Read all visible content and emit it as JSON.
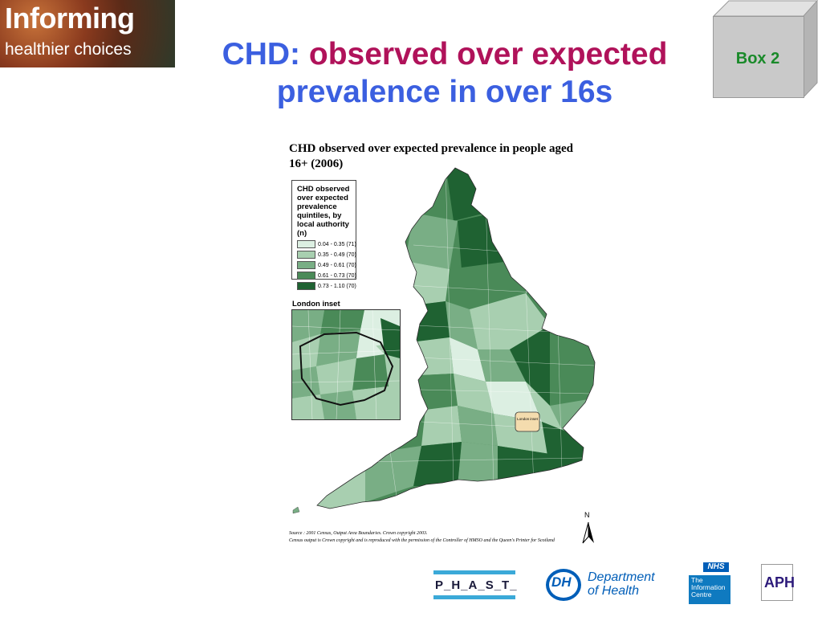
{
  "branding": {
    "logo_line1": "Informing",
    "logo_line2": "healthier choices"
  },
  "slide": {
    "title_part1": "CHD:",
    "title_part2": "observed over expected",
    "title_part3": "prevalence in over 16s",
    "box_label": "Box 2"
  },
  "map": {
    "title": "CHD observed over expected prevalence in people aged 16+ (2006)",
    "legend_title": "CHD observed over expected prevalence quintiles, by local authority (n)",
    "legend_items": [
      {
        "label": "0.04 - 0.35 (71)",
        "color": "#dcefe2"
      },
      {
        "label": "0.35 - 0.49 (70)",
        "color": "#a8cfb0"
      },
      {
        "label": "0.49 - 0.61 (70)",
        "color": "#79ae85"
      },
      {
        "label": "0.61 - 0.73 (70)",
        "color": "#4a8a58"
      },
      {
        "label": "0.73 - 1.10 (70)",
        "color": "#1f6232"
      }
    ],
    "inset_label": "London inset",
    "london_marker": "London inset",
    "north_label": "N",
    "source_line1": "Source : 2001 Census, Output Area Boundaries. Crown copyright 2003.",
    "source_line2": "Census output is Crown copyright and is reproduced with the permission of the Controller of HMSO and the Queen's Printer for Scotland"
  },
  "footer_logos": {
    "phast": "P_H_A_S_T_",
    "dh_mark": "DH",
    "dh_line1": "Department",
    "dh_line2": "of Health",
    "nhs": "NHS",
    "ic_text": "The Information Centre",
    "aph": "APH"
  }
}
